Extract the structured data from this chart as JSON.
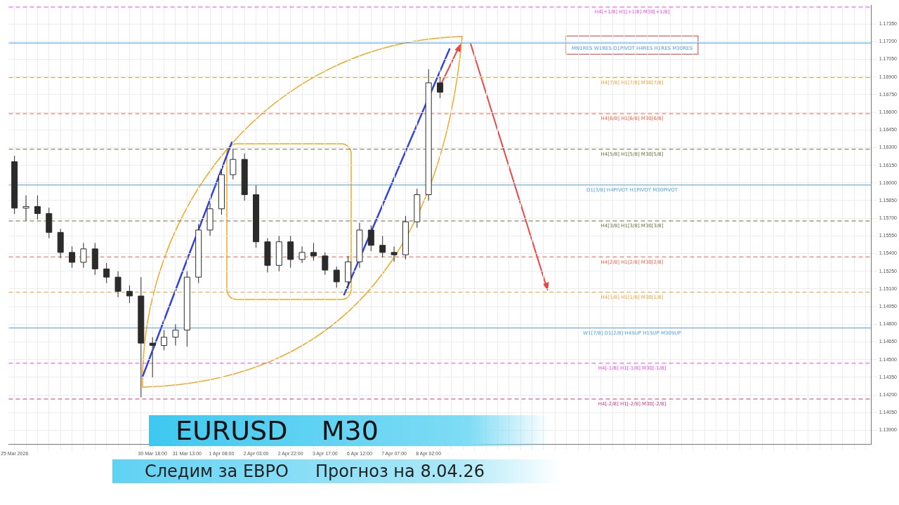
{
  "chart_data": {
    "type": "candlestick",
    "title": "EURUSD    M30",
    "subtitle": "Следим за ЕВРО     Прогноз на 8.04.26",
    "color": "#2b2b2b",
    "categories": [
      "25 Mar 2026",
      null,
      null,
      null,
      null,
      null,
      null,
      null,
      null,
      null,
      null,
      null,
      "30 Mar 18:00",
      null,
      null,
      "31 Mar 13:00",
      null,
      null,
      "1 Apr 08:00",
      null,
      null,
      "2 Apr 03:00",
      null,
      null,
      "2 Apr 22:00",
      null,
      null,
      "3 Apr 17:00",
      null,
      null,
      "6 Apr 12:00",
      null,
      null,
      "7 Apr 07:00",
      null,
      null,
      "8 Apr 02:00",
      null,
      null,
      null,
      null,
      null,
      null,
      null,
      null,
      null,
      null,
      null,
      null,
      null,
      null,
      null,
      null,
      null,
      null,
      null,
      null,
      null,
      null,
      null,
      null,
      null,
      null,
      null,
      null,
      null,
      null,
      null,
      null,
      null,
      null,
      null,
      null,
      null,
      null
    ],
    "ohlc": [
      [
        1.1618,
        1.1623,
        1.15736,
        1.15786
      ],
      [
        1.15786,
        1.15894,
        1.15679,
        1.158
      ],
      [
        1.158,
        1.15894,
        1.1569,
        1.1574
      ],
      [
        1.1574,
        1.1579,
        1.1553,
        1.1558
      ],
      [
        1.1558,
        1.1561,
        1.1536,
        1.1541
      ],
      [
        1.1541,
        1.1546,
        1.1528,
        1.15326
      ],
      [
        1.15326,
        1.1549,
        1.1528,
        1.1544
      ],
      [
        1.1544,
        1.1549,
        1.1522,
        1.1527
      ],
      [
        1.1527,
        1.1532,
        1.1515,
        1.152
      ],
      [
        1.152,
        1.1525,
        1.1503,
        1.1508
      ],
      [
        1.1508,
        1.1513,
        1.1498,
        1.1504
      ],
      [
        1.1504,
        1.152,
        1.1418,
        1.1464
      ],
      [
        1.1464,
        1.1469,
        1.1435,
        1.1462
      ],
      [
        1.1462,
        1.1475,
        1.1458,
        1.1469
      ],
      [
        1.1469,
        1.148,
        1.1462,
        1.1475
      ],
      [
        1.1475,
        1.1525,
        1.1461,
        1.152
      ],
      [
        1.152,
        1.1565,
        1.1515,
        1.156
      ],
      [
        1.156,
        1.1583,
        1.1555,
        1.1578
      ],
      [
        1.1578,
        1.1612,
        1.1573,
        1.1607
      ],
      [
        1.1607,
        1.1629,
        1.1603,
        1.162
      ],
      [
        1.162,
        1.1625,
        1.1585,
        1.159
      ],
      [
        1.159,
        1.1598,
        1.1545,
        1.155
      ],
      [
        1.155,
        1.1553,
        1.1524,
        1.153
      ],
      [
        1.153,
        1.1555,
        1.1525,
        1.155
      ],
      [
        1.155,
        1.1555,
        1.1528,
        1.1535
      ],
      [
        1.1535,
        1.1546,
        1.1532,
        1.1541
      ],
      [
        1.1541,
        1.1549,
        1.1534,
        1.1538
      ],
      [
        1.1538,
        1.1541,
        1.1522,
        1.1526
      ],
      [
        1.1526,
        1.1529,
        1.1511,
        1.1516
      ],
      [
        1.1516,
        1.1538,
        1.151,
        1.1533
      ],
      [
        1.1533,
        1.1566,
        1.1528,
        1.156
      ],
      [
        1.156,
        1.1564,
        1.1542,
        1.1547
      ],
      [
        1.1547,
        1.1555,
        1.1537,
        1.1541
      ],
      [
        1.1541,
        1.1546,
        1.1533,
        1.1539
      ],
      [
        1.1539,
        1.1572,
        1.1535,
        1.1567
      ],
      [
        1.1567,
        1.1595,
        1.1562,
        1.159
      ],
      [
        1.159,
        1.16965,
        1.1585,
        1.1685
      ],
      [
        1.1685,
        1.169,
        1.1672,
        1.1677
      ],
      null,
      null,
      null,
      null,
      null,
      null,
      null,
      null,
      null,
      null,
      null,
      null,
      null,
      null,
      null,
      null,
      null,
      null,
      null,
      null,
      null,
      null,
      null,
      null,
      null,
      null,
      null,
      null,
      null,
      null,
      null,
      null,
      null,
      null,
      null,
      null,
      null
    ],
    "ylim": [
      1.1378,
      1.1751
    ],
    "yticks": [
      {
        "value": 1.139,
        "label": "1.13900"
      },
      {
        "value": 1.1405,
        "label": "1.14050"
      },
      {
        "value": 1.142,
        "label": "1.14200"
      },
      {
        "value": 1.1435,
        "label": "1.14350"
      },
      {
        "value": 1.145,
        "label": "1.14500"
      },
      {
        "value": 1.1465,
        "label": "1.14650"
      },
      {
        "value": 1.148,
        "label": "1.14800"
      },
      {
        "value": 1.1495,
        "label": "1.14950"
      },
      {
        "value": 1.151,
        "label": "1.15100"
      },
      {
        "value": 1.1525,
        "label": "1.15250"
      },
      {
        "value": 1.154,
        "label": "1.15400"
      },
      {
        "value": 1.1555,
        "label": "1.15550"
      },
      {
        "value": 1.157,
        "label": "1.15700"
      },
      {
        "value": 1.1585,
        "label": "1.15850"
      },
      {
        "value": 1.16,
        "label": "1.16000"
      },
      {
        "value": 1.1615,
        "label": "1.16150"
      },
      {
        "value": 1.163,
        "label": "1.16300"
      },
      {
        "value": 1.1645,
        "label": "1.16450"
      },
      {
        "value": 1.166,
        "label": "1.16600"
      },
      {
        "value": 1.1675,
        "label": "1.16750"
      },
      {
        "value": 1.169,
        "label": "1.16900"
      },
      {
        "value": 1.1705,
        "label": "1.17050"
      },
      {
        "value": 1.172,
        "label": "1.17200"
      },
      {
        "value": 1.1735,
        "label": "1.17350"
      }
    ],
    "grid": true,
    "ref_lines": [
      {
        "axis": "y",
        "value": 1.17493,
        "label": "H4[+1/8] H1[+1/8] M30[+1/8]",
        "color": "#ee44ee",
        "line_style": "dashed"
      },
      {
        "axis": "y",
        "value": 1.17188,
        "label": "MN1RES W1RES D1PIVOT H4RES H1RES M30RES",
        "color": "#4a9ee8",
        "line_style": "solid"
      },
      {
        "axis": "y",
        "value": 1.16895,
        "label": "H4[7/8] H1[7/8] M30[7/8]",
        "color": "#f0a030",
        "line_style": "dashed"
      },
      {
        "axis": "y",
        "value": 1.16588,
        "label": "H4[6/8] H1[6/8] M30[6/8]",
        "color": "#f06040",
        "line_style": "dashed"
      },
      {
        "axis": "y",
        "value": 1.16286,
        "label": "H4[5/8] H1[5/8] M30[5/8]",
        "color": "#6b6b3a",
        "line_style": "dashed"
      },
      {
        "axis": "y",
        "value": 1.15982,
        "label": "D1[3/8] H4PIVOT H1PIVOT M30PIVOT",
        "color": "#4a9ee8",
        "line_style": "solid"
      },
      {
        "axis": "y",
        "value": 1.15677,
        "label": "H4[3/8] H1[3/8] M30[3/8]",
        "color": "#6b6b3a",
        "line_style": "dashed"
      },
      {
        "axis": "y",
        "value": 1.15372,
        "label": "H4[2/8] H1[2/8] M30[2/8]",
        "color": "#f06040",
        "line_style": "dashed"
      },
      {
        "axis": "y",
        "value": 1.15073,
        "label": "H4[1/8] H1[1/8] M30[1/8]",
        "color": "#f0a030",
        "line_style": "dashed"
      },
      {
        "axis": "y",
        "value": 1.14768,
        "label": "W1[7/8] D1[2/8] H4SUP H1SUP M30SUP",
        "color": "#4a9ee8",
        "line_style": "solid"
      },
      {
        "axis": "y",
        "value": 1.14469,
        "label": "H4[-1/8] H1[-1/8] M30[-1/8]",
        "color": "#ee44ee",
        "line_style": "dashed"
      },
      {
        "axis": "y",
        "value": 1.14165,
        "label": "H4[-2/8] H1[-2/8] M30[-2/8]",
        "color": "#cc3388",
        "line_style": "dashed"
      }
    ]
  }
}
